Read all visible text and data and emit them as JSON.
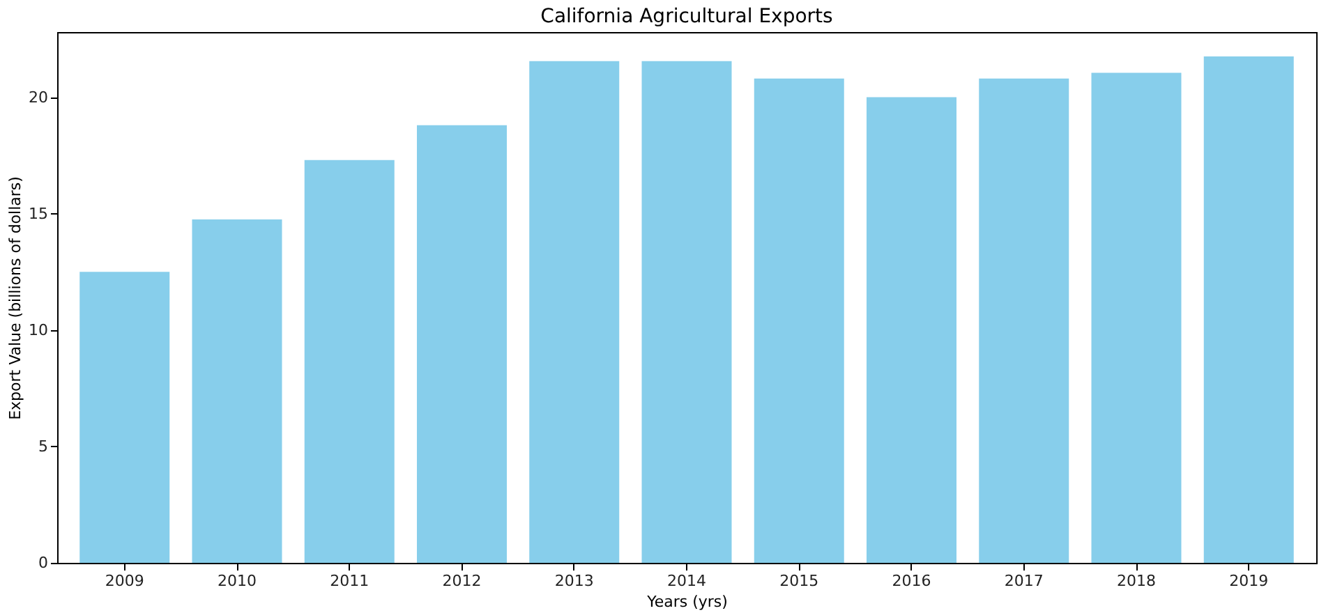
{
  "chart_data": {
    "type": "bar",
    "title": "California Agricultural Exports",
    "xlabel": "Years (yrs)",
    "ylabel": "Export Value (billions of dollars)",
    "categories": [
      "2009",
      "2010",
      "2011",
      "2012",
      "2013",
      "2014",
      "2015",
      "2016",
      "2017",
      "2018",
      "2019"
    ],
    "values": [
      12.5,
      14.75,
      17.3,
      18.8,
      21.55,
      21.55,
      20.8,
      20.0,
      20.8,
      21.05,
      21.75
    ],
    "color": "#87ceeb",
    "ylim": [
      0,
      22.8
    ],
    "yticks": [
      0,
      5,
      10,
      15,
      20
    ],
    "grid": false
  }
}
